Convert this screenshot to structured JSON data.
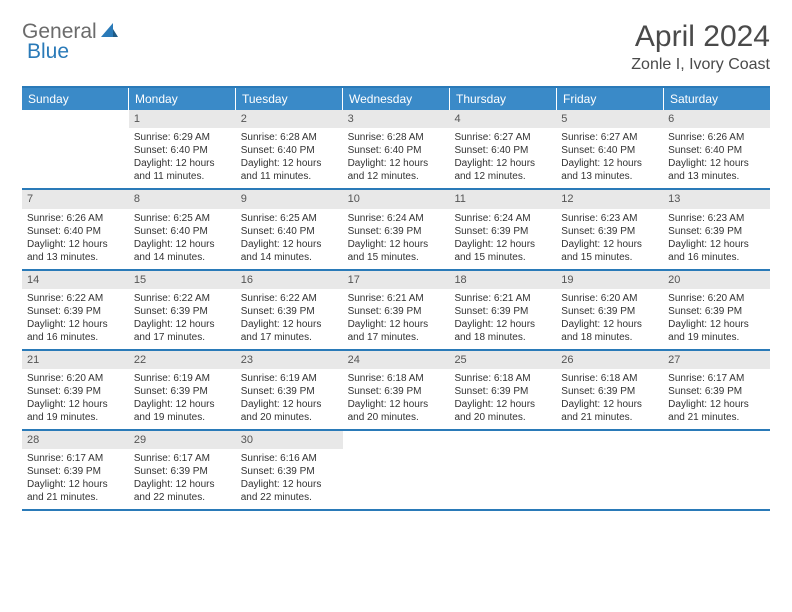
{
  "logo": {
    "part1": "General",
    "part2": "Blue"
  },
  "title": "April 2024",
  "location": "Zonle I, Ivory Coast",
  "colors": {
    "header_bg": "#3a8ac8",
    "border": "#2a7ab8",
    "daynum_bg": "#e8e8e8",
    "text": "#333333",
    "logo_gray": "#6b6b6b",
    "logo_blue": "#2a7ab8"
  },
  "day_names": [
    "Sunday",
    "Monday",
    "Tuesday",
    "Wednesday",
    "Thursday",
    "Friday",
    "Saturday"
  ],
  "weeks": [
    [
      {
        "day": "",
        "sunrise": "",
        "sunset": "",
        "daylight": ""
      },
      {
        "day": "1",
        "sunrise": "Sunrise: 6:29 AM",
        "sunset": "Sunset: 6:40 PM",
        "daylight": "Daylight: 12 hours and 11 minutes."
      },
      {
        "day": "2",
        "sunrise": "Sunrise: 6:28 AM",
        "sunset": "Sunset: 6:40 PM",
        "daylight": "Daylight: 12 hours and 11 minutes."
      },
      {
        "day": "3",
        "sunrise": "Sunrise: 6:28 AM",
        "sunset": "Sunset: 6:40 PM",
        "daylight": "Daylight: 12 hours and 12 minutes."
      },
      {
        "day": "4",
        "sunrise": "Sunrise: 6:27 AM",
        "sunset": "Sunset: 6:40 PM",
        "daylight": "Daylight: 12 hours and 12 minutes."
      },
      {
        "day": "5",
        "sunrise": "Sunrise: 6:27 AM",
        "sunset": "Sunset: 6:40 PM",
        "daylight": "Daylight: 12 hours and 13 minutes."
      },
      {
        "day": "6",
        "sunrise": "Sunrise: 6:26 AM",
        "sunset": "Sunset: 6:40 PM",
        "daylight": "Daylight: 12 hours and 13 minutes."
      }
    ],
    [
      {
        "day": "7",
        "sunrise": "Sunrise: 6:26 AM",
        "sunset": "Sunset: 6:40 PM",
        "daylight": "Daylight: 12 hours and 13 minutes."
      },
      {
        "day": "8",
        "sunrise": "Sunrise: 6:25 AM",
        "sunset": "Sunset: 6:40 PM",
        "daylight": "Daylight: 12 hours and 14 minutes."
      },
      {
        "day": "9",
        "sunrise": "Sunrise: 6:25 AM",
        "sunset": "Sunset: 6:40 PM",
        "daylight": "Daylight: 12 hours and 14 minutes."
      },
      {
        "day": "10",
        "sunrise": "Sunrise: 6:24 AM",
        "sunset": "Sunset: 6:39 PM",
        "daylight": "Daylight: 12 hours and 15 minutes."
      },
      {
        "day": "11",
        "sunrise": "Sunrise: 6:24 AM",
        "sunset": "Sunset: 6:39 PM",
        "daylight": "Daylight: 12 hours and 15 minutes."
      },
      {
        "day": "12",
        "sunrise": "Sunrise: 6:23 AM",
        "sunset": "Sunset: 6:39 PM",
        "daylight": "Daylight: 12 hours and 15 minutes."
      },
      {
        "day": "13",
        "sunrise": "Sunrise: 6:23 AM",
        "sunset": "Sunset: 6:39 PM",
        "daylight": "Daylight: 12 hours and 16 minutes."
      }
    ],
    [
      {
        "day": "14",
        "sunrise": "Sunrise: 6:22 AM",
        "sunset": "Sunset: 6:39 PM",
        "daylight": "Daylight: 12 hours and 16 minutes."
      },
      {
        "day": "15",
        "sunrise": "Sunrise: 6:22 AM",
        "sunset": "Sunset: 6:39 PM",
        "daylight": "Daylight: 12 hours and 17 minutes."
      },
      {
        "day": "16",
        "sunrise": "Sunrise: 6:22 AM",
        "sunset": "Sunset: 6:39 PM",
        "daylight": "Daylight: 12 hours and 17 minutes."
      },
      {
        "day": "17",
        "sunrise": "Sunrise: 6:21 AM",
        "sunset": "Sunset: 6:39 PM",
        "daylight": "Daylight: 12 hours and 17 minutes."
      },
      {
        "day": "18",
        "sunrise": "Sunrise: 6:21 AM",
        "sunset": "Sunset: 6:39 PM",
        "daylight": "Daylight: 12 hours and 18 minutes."
      },
      {
        "day": "19",
        "sunrise": "Sunrise: 6:20 AM",
        "sunset": "Sunset: 6:39 PM",
        "daylight": "Daylight: 12 hours and 18 minutes."
      },
      {
        "day": "20",
        "sunrise": "Sunrise: 6:20 AM",
        "sunset": "Sunset: 6:39 PM",
        "daylight": "Daylight: 12 hours and 19 minutes."
      }
    ],
    [
      {
        "day": "21",
        "sunrise": "Sunrise: 6:20 AM",
        "sunset": "Sunset: 6:39 PM",
        "daylight": "Daylight: 12 hours and 19 minutes."
      },
      {
        "day": "22",
        "sunrise": "Sunrise: 6:19 AM",
        "sunset": "Sunset: 6:39 PM",
        "daylight": "Daylight: 12 hours and 19 minutes."
      },
      {
        "day": "23",
        "sunrise": "Sunrise: 6:19 AM",
        "sunset": "Sunset: 6:39 PM",
        "daylight": "Daylight: 12 hours and 20 minutes."
      },
      {
        "day": "24",
        "sunrise": "Sunrise: 6:18 AM",
        "sunset": "Sunset: 6:39 PM",
        "daylight": "Daylight: 12 hours and 20 minutes."
      },
      {
        "day": "25",
        "sunrise": "Sunrise: 6:18 AM",
        "sunset": "Sunset: 6:39 PM",
        "daylight": "Daylight: 12 hours and 20 minutes."
      },
      {
        "day": "26",
        "sunrise": "Sunrise: 6:18 AM",
        "sunset": "Sunset: 6:39 PM",
        "daylight": "Daylight: 12 hours and 21 minutes."
      },
      {
        "day": "27",
        "sunrise": "Sunrise: 6:17 AM",
        "sunset": "Sunset: 6:39 PM",
        "daylight": "Daylight: 12 hours and 21 minutes."
      }
    ],
    [
      {
        "day": "28",
        "sunrise": "Sunrise: 6:17 AM",
        "sunset": "Sunset: 6:39 PM",
        "daylight": "Daylight: 12 hours and 21 minutes."
      },
      {
        "day": "29",
        "sunrise": "Sunrise: 6:17 AM",
        "sunset": "Sunset: 6:39 PM",
        "daylight": "Daylight: 12 hours and 22 minutes."
      },
      {
        "day": "30",
        "sunrise": "Sunrise: 6:16 AM",
        "sunset": "Sunset: 6:39 PM",
        "daylight": "Daylight: 12 hours and 22 minutes."
      },
      {
        "day": "",
        "sunrise": "",
        "sunset": "",
        "daylight": ""
      },
      {
        "day": "",
        "sunrise": "",
        "sunset": "",
        "daylight": ""
      },
      {
        "day": "",
        "sunrise": "",
        "sunset": "",
        "daylight": ""
      },
      {
        "day": "",
        "sunrise": "",
        "sunset": "",
        "daylight": ""
      }
    ]
  ]
}
